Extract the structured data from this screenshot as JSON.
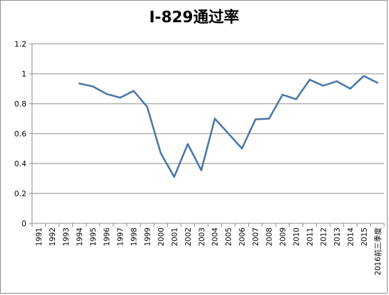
{
  "chart_data": {
    "type": "line",
    "title": "I-829通过率",
    "xlabel": "",
    "ylabel": "",
    "ylim": [
      0,
      1.2
    ],
    "yticks": [
      "0",
      "0.2",
      "0.4",
      "0.6",
      "0.8",
      "1",
      "1.2"
    ],
    "categories": [
      "1991",
      "1992",
      "1993",
      "1994",
      "1995",
      "1996",
      "1997",
      "1998",
      "1999",
      "2000",
      "2001",
      "2002",
      "2003",
      "2004",
      "2005",
      "2006",
      "2007",
      "2008",
      "2009",
      "2010",
      "2011",
      "2012",
      "2013",
      "2014",
      "2015",
      "2016前三季度"
    ],
    "grid": true,
    "legend": "none",
    "series": [
      {
        "color": "#4a77a8",
        "values": [
          null,
          null,
          null,
          0.935,
          0.915,
          0.865,
          0.84,
          0.885,
          0.78,
          0.47,
          0.31,
          0.53,
          0.355,
          0.7,
          0.6,
          0.5,
          0.695,
          0.7,
          0.86,
          0.83,
          0.96,
          0.92,
          0.95,
          0.9,
          0.985,
          0.94
        ]
      }
    ]
  }
}
